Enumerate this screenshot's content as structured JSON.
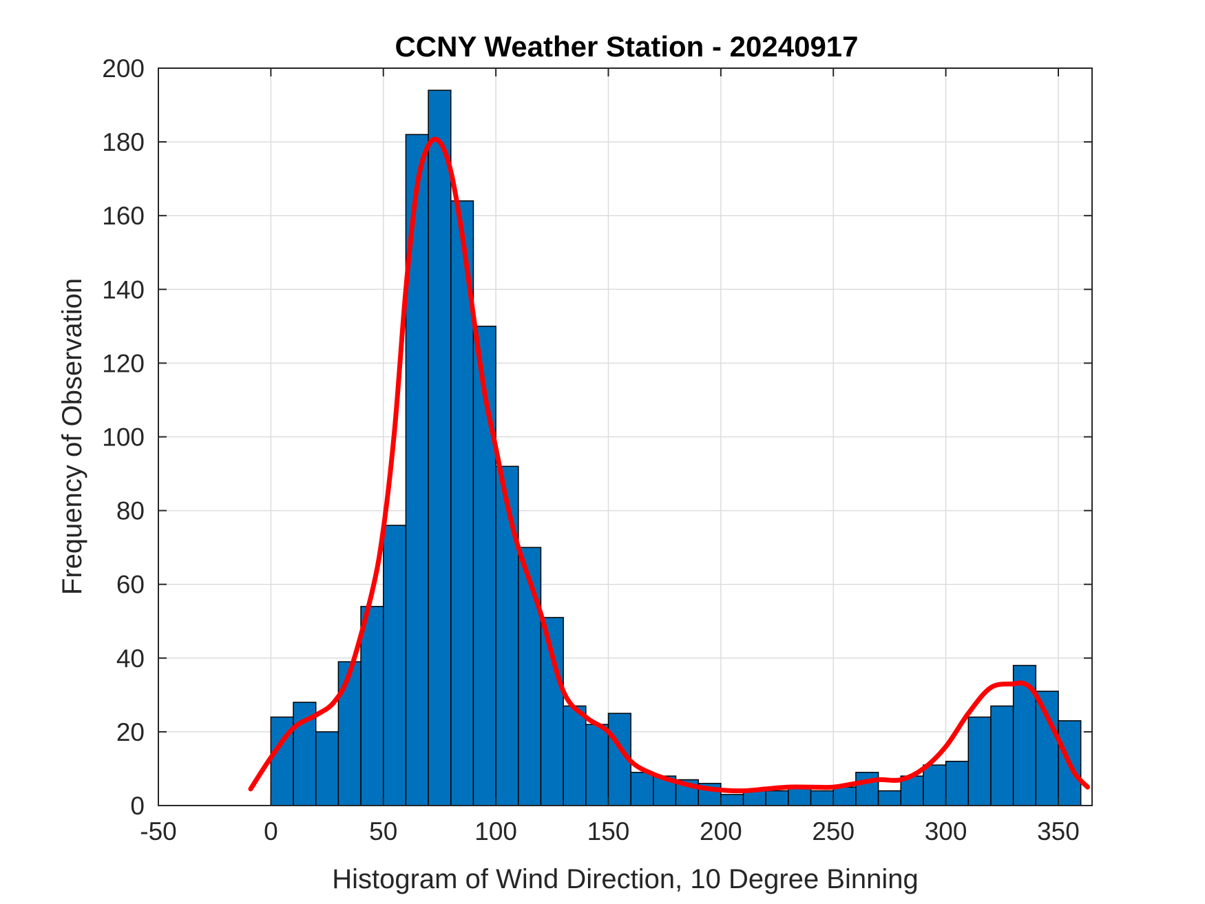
{
  "chart_data": {
    "type": "bar",
    "title": "CCNY Weather Station - 20240917",
    "xlabel": "Histogram of Wind Direction, 10 Degree Binning",
    "ylabel": "Frequency of Observation",
    "xlim": [
      -50,
      365
    ],
    "ylim": [
      0,
      200
    ],
    "xticks": [
      -50,
      0,
      50,
      100,
      150,
      200,
      250,
      300,
      350
    ],
    "yticks": [
      0,
      20,
      40,
      60,
      80,
      100,
      120,
      140,
      160,
      180,
      200
    ],
    "grid": true,
    "bin_width": 10,
    "bin_edges_start": [
      0,
      10,
      20,
      30,
      40,
      50,
      60,
      70,
      80,
      90,
      100,
      110,
      120,
      130,
      140,
      150,
      160,
      170,
      180,
      190,
      200,
      210,
      220,
      230,
      240,
      250,
      260,
      270,
      280,
      290,
      300,
      310,
      320,
      330,
      340,
      350
    ],
    "values": [
      24,
      28,
      20,
      39,
      54,
      76,
      182,
      194,
      164,
      130,
      92,
      70,
      51,
      27,
      22,
      25,
      9,
      8,
      7,
      6,
      3,
      4,
      4,
      5,
      4,
      5,
      9,
      4,
      8,
      11,
      12,
      24,
      27,
      38,
      31,
      23
    ],
    "bar_color": "#0072bd",
    "fit_curve": {
      "name": "density fit",
      "color": "#ff0000",
      "x": [
        -9,
        0,
        10,
        20,
        28,
        35,
        45,
        50,
        55,
        60,
        65,
        70,
        75,
        80,
        85,
        90,
        95,
        100,
        105,
        110,
        120,
        130,
        140,
        150,
        160,
        170,
        180,
        190,
        200,
        210,
        220,
        230,
        240,
        250,
        260,
        270,
        280,
        290,
        300,
        310,
        320,
        330,
        335,
        340,
        350,
        357,
        363
      ],
      "y": [
        4.5,
        13,
        21,
        24.5,
        28,
        36,
        58,
        75,
        102,
        140,
        168,
        179,
        180,
        172,
        155,
        133,
        112,
        97,
        82,
        70,
        52,
        31,
        24,
        20,
        12,
        8.5,
        6.5,
        5,
        4.2,
        4,
        4.5,
        5,
        5,
        5,
        6,
        7,
        7,
        10,
        16,
        25,
        32,
        33,
        33,
        30,
        18,
        9,
        5
      ]
    }
  }
}
